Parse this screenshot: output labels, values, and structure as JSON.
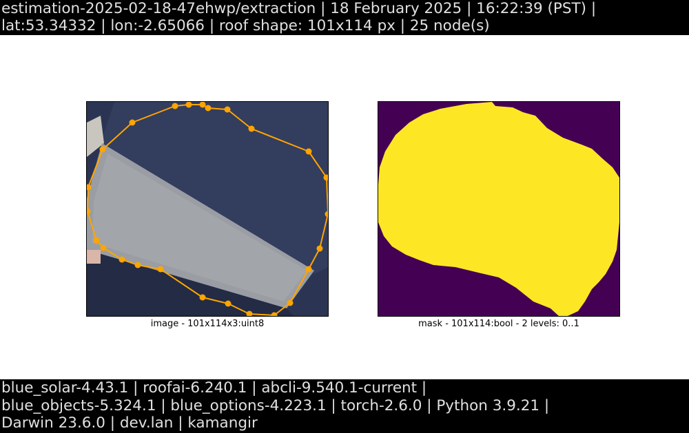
{
  "header": {
    "line1": "estimation-2025-02-18-47ehwp/extraction | 18 February 2025 | 16:22:39 (PST) |",
    "line2": "lat:53.34332 | lon:-2.65066 | roof shape: 101x114 px | 25 node(s)"
  },
  "image_panel": {
    "caption": "image - 101x114x3:uint8",
    "outline_color": "#ffa500"
  },
  "mask_panel": {
    "caption": "mask - 101x114:bool - 2 levels: 0..1",
    "foreground_color": "#fde725",
    "background_color": "#440154"
  },
  "footer": {
    "line1": "blue_solar-4.43.1 | roofai-6.240.1 | abcli-9.540.1-current |",
    "line2": "blue_objects-5.324.1 | blue_options-4.223.1 | torch-2.6.0 | Python 3.9.21 |",
    "line3": "Darwin 23.6.0 | dev.lan | kamangir"
  }
}
